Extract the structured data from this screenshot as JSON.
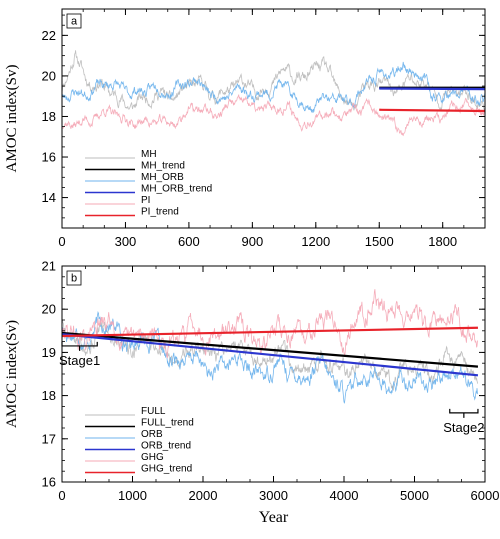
{
  "chart_data": [
    {
      "id": "a",
      "type": "line",
      "panel_label": "a",
      "ylabel": "AMOC index(Sv)",
      "xlabel": "",
      "xlim": [
        0,
        2000
      ],
      "ylim": [
        12.5,
        23.3
      ],
      "xticks": [
        0,
        300,
        600,
        900,
        1200,
        1500,
        1800
      ],
      "yticks": [
        14,
        16,
        18,
        20,
        22
      ],
      "legend_position": "bottom-left",
      "series": [
        {
          "name": "MH",
          "color": "#bdbdbd",
          "kind": "raw",
          "x_range": [
            0,
            2000
          ],
          "mean": 19.2,
          "amp": 0.75,
          "seed": 11,
          "anchors": [
            [
              0,
              18.8
            ],
            [
              60,
              21.0
            ],
            [
              110,
              20.2
            ],
            [
              200,
              19.3
            ],
            [
              400,
              18.7
            ],
            [
              700,
              19.4
            ],
            [
              1000,
              19.6
            ],
            [
              1150,
              19.9
            ],
            [
              1200,
              20.6
            ],
            [
              1350,
              18.9
            ],
            [
              1500,
              19.5
            ],
            [
              1800,
              19.3
            ],
            [
              2000,
              19.0
            ]
          ]
        },
        {
          "name": "MH_trend",
          "color": "#000000",
          "kind": "trend",
          "x": [
            1500,
            2000
          ],
          "y": [
            19.42,
            19.42
          ]
        },
        {
          "name": "MH_ORB",
          "color": "#6fb3ec",
          "kind": "raw",
          "x_range": [
            0,
            2000
          ],
          "mean": 19.2,
          "amp": 0.65,
          "seed": 23,
          "anchors": [
            [
              0,
              18.6
            ],
            [
              100,
              19.5
            ],
            [
              300,
              19.6
            ],
            [
              400,
              19.0
            ],
            [
              600,
              19.6
            ],
            [
              800,
              19.2
            ],
            [
              1000,
              19.2
            ],
            [
              1200,
              18.6
            ],
            [
              1400,
              19.2
            ],
            [
              1600,
              20.4
            ],
            [
              1800,
              19.1
            ],
            [
              2000,
              19.0
            ]
          ]
        },
        {
          "name": "MH_ORB_trend",
          "color": "#2b36cf",
          "kind": "trend",
          "x": [
            1500,
            2000
          ],
          "y": [
            19.38,
            19.35
          ]
        },
        {
          "name": "PI",
          "color": "#f4a9b6",
          "kind": "raw",
          "x_range": [
            0,
            2000
          ],
          "mean": 18.3,
          "amp": 0.6,
          "seed": 37,
          "anchors": [
            [
              0,
              17.5
            ],
            [
              100,
              18.1
            ],
            [
              300,
              17.9
            ],
            [
              400,
              17.4
            ],
            [
              600,
              18.3
            ],
            [
              800,
              18.4
            ],
            [
              1000,
              18.4
            ],
            [
              1200,
              18.0
            ],
            [
              1400,
              18.2
            ],
            [
              1600,
              17.6
            ],
            [
              1800,
              18.2
            ],
            [
              2000,
              18.4
            ]
          ]
        },
        {
          "name": "PI_trend",
          "color": "#e8232b",
          "kind": "trend",
          "x": [
            1500,
            2000
          ],
          "y": [
            18.33,
            18.27
          ]
        }
      ]
    },
    {
      "id": "b",
      "type": "line",
      "panel_label": "b",
      "ylabel": "AMOC index(Sv)",
      "xlabel": "Year",
      "xlim": [
        0,
        6000
      ],
      "ylim": [
        16,
        21
      ],
      "xticks": [
        0,
        1000,
        2000,
        3000,
        4000,
        5000,
        6000
      ],
      "yticks": [
        16,
        17,
        18,
        19,
        20,
        21
      ],
      "legend_position": "bottom-left",
      "annotations": [
        {
          "text": "Stage1",
          "bracket_x": [
            0,
            500
          ]
        },
        {
          "text": "Stage2",
          "bracket_x": [
            5500,
            5900
          ]
        }
      ],
      "series": [
        {
          "name": "FULL",
          "color": "#bdbdbd",
          "kind": "raw",
          "x_range": [
            0,
            5900
          ],
          "mean": 19.0,
          "amp": 0.45,
          "seed": 5,
          "anchors": [
            [
              0,
              19.5
            ],
            [
              1000,
              19.2
            ],
            [
              2000,
              19.0
            ],
            [
              3000,
              18.9
            ],
            [
              4000,
              18.6
            ],
            [
              5000,
              18.7
            ],
            [
              5900,
              18.5
            ]
          ]
        },
        {
          "name": "FULL_trend",
          "color": "#000000",
          "kind": "trend",
          "x": [
            0,
            5900
          ],
          "y": [
            19.45,
            18.67
          ]
        },
        {
          "name": "ORB",
          "color": "#6fb3ec",
          "kind": "raw",
          "x_range": [
            0,
            5900
          ],
          "mean": 18.8,
          "amp": 0.45,
          "seed": 17,
          "anchors": [
            [
              0,
              19.5
            ],
            [
              800,
              19.4
            ],
            [
              1500,
              19.1
            ],
            [
              2000,
              18.6
            ],
            [
              2500,
              18.6
            ],
            [
              3000,
              18.7
            ],
            [
              3500,
              18.6
            ],
            [
              4000,
              18.1
            ],
            [
              4500,
              18.5
            ],
            [
              5000,
              18.3
            ],
            [
              5500,
              18.4
            ],
            [
              5900,
              18.2
            ]
          ]
        },
        {
          "name": "ORB_trend",
          "color": "#2b36cf",
          "kind": "trend",
          "x": [
            0,
            5900
          ],
          "y": [
            19.42,
            18.47
          ]
        },
        {
          "name": "GHG",
          "color": "#f4a9b6",
          "kind": "raw",
          "x_range": [
            0,
            5900
          ],
          "mean": 19.5,
          "amp": 0.55,
          "seed": 29,
          "anchors": [
            [
              0,
              19.4
            ],
            [
              1000,
              19.4
            ],
            [
              2000,
              19.4
            ],
            [
              3000,
              19.5
            ],
            [
              4000,
              19.5
            ],
            [
              4600,
              20.4
            ],
            [
              5000,
              19.7
            ],
            [
              5900,
              19.5
            ]
          ]
        },
        {
          "name": "GHG_trend",
          "color": "#e8232b",
          "kind": "trend",
          "x": [
            0,
            5900
          ],
          "y": [
            19.38,
            19.57
          ]
        }
      ]
    }
  ]
}
